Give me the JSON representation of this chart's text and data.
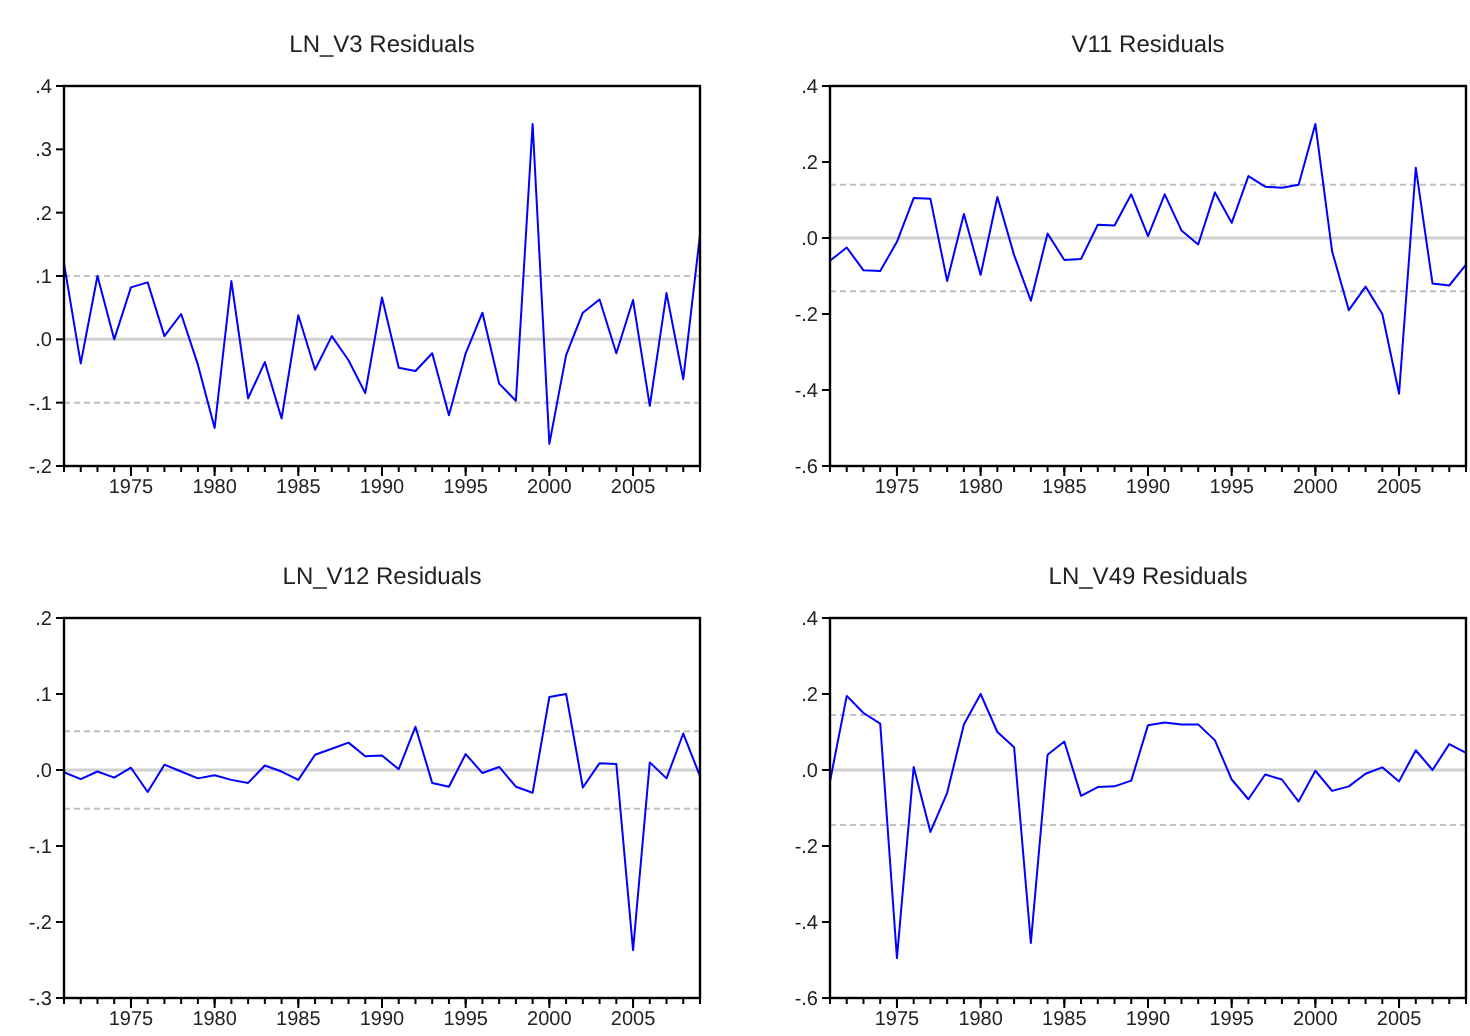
{
  "chart_data": [
    {
      "type": "line",
      "title": "LN_V3 Residuals",
      "x": [
        1971,
        1972,
        1973,
        1974,
        1975,
        1976,
        1977,
        1978,
        1979,
        1980,
        1981,
        1982,
        1983,
        1984,
        1985,
        1986,
        1987,
        1988,
        1989,
        1990,
        1991,
        1992,
        1993,
        1994,
        1995,
        1996,
        1997,
        1998,
        1999,
        2000,
        2001,
        2002,
        2003,
        2004,
        2005,
        2006,
        2007,
        2008,
        2009
      ],
      "series": [
        {
          "color": "#0000ff",
          "values": [
            0.12,
            -0.038,
            0.1,
            0.0,
            0.082,
            0.09,
            0.005,
            0.04,
            -0.04,
            -0.14,
            0.092,
            -0.093,
            -0.036,
            -0.125,
            0.038,
            -0.048,
            0.005,
            -0.033,
            -0.085,
            0.066,
            -0.045,
            -0.05,
            -0.022,
            -0.12,
            -0.022,
            0.042,
            -0.07,
            -0.097,
            0.34,
            -0.165,
            -0.025,
            0.042,
            0.063,
            -0.022,
            0.062,
            -0.105,
            0.073,
            -0.063,
            0.165
          ]
        }
      ],
      "xlim": [
        1971,
        2009
      ],
      "xticks": [
        1975,
        1980,
        1985,
        1990,
        1995,
        2000,
        2005
      ],
      "ylim": [
        -0.2,
        0.4
      ],
      "yticks": [
        {
          "value": -0.2,
          "label": "-.2"
        },
        {
          "value": -0.1,
          "label": "-.1"
        },
        {
          "value": 0,
          "label": ".0"
        },
        {
          "value": 0.1,
          "label": ".1"
        },
        {
          "value": 0.2,
          "label": ".2"
        },
        {
          "value": 0.3,
          "label": ".3"
        },
        {
          "value": 0.4,
          "label": ".4"
        }
      ],
      "ref_lines": [
        {
          "axis": "y",
          "value": 0,
          "color": "#d0d0d0",
          "line_style": "solid"
        },
        {
          "axis": "y",
          "value": 0.1,
          "color": "#c0c0c0",
          "line_style": "dashed"
        },
        {
          "axis": "y",
          "value": -0.1,
          "color": "#c0c0c0",
          "line_style": "dashed"
        }
      ],
      "grid": false,
      "marker": "none",
      "line_style": "solid"
    },
    {
      "type": "line",
      "title": "V11 Residuals",
      "x": [
        1971,
        1972,
        1973,
        1974,
        1975,
        1976,
        1977,
        1978,
        1979,
        1980,
        1981,
        1982,
        1983,
        1984,
        1985,
        1986,
        1987,
        1988,
        1989,
        1990,
        1991,
        1992,
        1993,
        1994,
        1995,
        1996,
        1997,
        1998,
        1999,
        2000,
        2001,
        2002,
        2003,
        2004,
        2005,
        2006,
        2007,
        2008,
        2009
      ],
      "series": [
        {
          "color": "#0000ff",
          "values": [
            -0.06,
            -0.025,
            -0.085,
            -0.087,
            -0.01,
            0.105,
            0.103,
            -0.113,
            0.063,
            -0.097,
            0.108,
            -0.045,
            -0.165,
            0.012,
            -0.058,
            -0.055,
            0.035,
            0.033,
            0.115,
            0.005,
            0.115,
            0.02,
            -0.017,
            0.12,
            0.04,
            0.163,
            0.135,
            0.132,
            0.14,
            0.3,
            -0.035,
            -0.19,
            -0.128,
            -0.2,
            -0.41,
            0.185,
            -0.12,
            -0.125,
            -0.07
          ]
        }
      ],
      "xlim": [
        1971,
        2009
      ],
      "xticks": [
        1975,
        1980,
        1985,
        1990,
        1995,
        2000,
        2005
      ],
      "ylim": [
        -0.6,
        0.4
      ],
      "yticks": [
        {
          "value": -0.6,
          "label": "-.6"
        },
        {
          "value": -0.4,
          "label": "-.4"
        },
        {
          "value": -0.2,
          "label": "-.2"
        },
        {
          "value": 0,
          "label": ".0"
        },
        {
          "value": 0.2,
          "label": ".2"
        },
        {
          "value": 0.4,
          "label": ".4"
        }
      ],
      "ref_lines": [
        {
          "axis": "y",
          "value": 0,
          "color": "#d0d0d0",
          "line_style": "solid"
        },
        {
          "axis": "y",
          "value": 0.14,
          "color": "#c0c0c0",
          "line_style": "dashed"
        },
        {
          "axis": "y",
          "value": -0.14,
          "color": "#c0c0c0",
          "line_style": "dashed"
        }
      ],
      "grid": false,
      "marker": "none",
      "line_style": "solid"
    },
    {
      "type": "line",
      "title": "LN_V12 Residuals",
      "x": [
        1971,
        1972,
        1973,
        1974,
        1975,
        1976,
        1977,
        1978,
        1979,
        1980,
        1981,
        1982,
        1983,
        1984,
        1985,
        1986,
        1987,
        1988,
        1989,
        1990,
        1991,
        1992,
        1993,
        1994,
        1995,
        1996,
        1997,
        1998,
        1999,
        2000,
        2001,
        2002,
        2003,
        2004,
        2005,
        2006,
        2007,
        2008,
        2009
      ],
      "series": [
        {
          "color": "#0000ff",
          "values": [
            -0.003,
            -0.012,
            -0.002,
            -0.01,
            0.003,
            -0.029,
            0.007,
            -0.002,
            -0.011,
            -0.007,
            -0.013,
            -0.017,
            0.006,
            -0.002,
            -0.013,
            0.02,
            0.028,
            0.036,
            0.018,
            0.019,
            0.001,
            0.057,
            -0.017,
            -0.022,
            0.021,
            -0.004,
            0.004,
            -0.022,
            -0.03,
            0.096,
            0.1,
            -0.023,
            0.009,
            0.008,
            -0.237,
            0.01,
            -0.011,
            0.048,
            -0.008
          ]
        }
      ],
      "xlim": [
        1971,
        2009
      ],
      "xticks": [
        1975,
        1980,
        1985,
        1990,
        1995,
        2000,
        2005
      ],
      "ylim": [
        -0.3,
        0.2
      ],
      "yticks": [
        {
          "value": -0.3,
          "label": "-.3"
        },
        {
          "value": -0.2,
          "label": "-.2"
        },
        {
          "value": -0.1,
          "label": "-.1"
        },
        {
          "value": 0,
          "label": ".0"
        },
        {
          "value": 0.1,
          "label": ".1"
        },
        {
          "value": 0.2,
          "label": ".2"
        }
      ],
      "ref_lines": [
        {
          "axis": "y",
          "value": 0,
          "color": "#d0d0d0",
          "line_style": "solid"
        },
        {
          "axis": "y",
          "value": 0.051,
          "color": "#c0c0c0",
          "line_style": "dashed"
        },
        {
          "axis": "y",
          "value": -0.051,
          "color": "#c0c0c0",
          "line_style": "dashed"
        }
      ],
      "grid": false,
      "marker": "none",
      "line_style": "solid"
    },
    {
      "type": "line",
      "title": "LN_V49 Residuals",
      "x": [
        1971,
        1972,
        1973,
        1974,
        1975,
        1976,
        1977,
        1978,
        1979,
        1980,
        1981,
        1982,
        1983,
        1984,
        1985,
        1986,
        1987,
        1988,
        1989,
        1990,
        1991,
        1992,
        1993,
        1994,
        1995,
        1996,
        1997,
        1998,
        1999,
        2000,
        2001,
        2002,
        2003,
        2004,
        2005,
        2006,
        2007,
        2008,
        2009
      ],
      "series": [
        {
          "color": "#0000ff",
          "values": [
            -0.03,
            0.195,
            0.15,
            0.122,
            -0.495,
            0.008,
            -0.163,
            -0.06,
            0.12,
            0.2,
            0.1,
            0.06,
            -0.455,
            0.04,
            0.075,
            -0.068,
            -0.045,
            -0.043,
            -0.028,
            0.118,
            0.125,
            0.12,
            0.12,
            0.078,
            -0.025,
            -0.077,
            -0.012,
            -0.025,
            -0.083,
            -0.002,
            -0.055,
            -0.043,
            -0.01,
            0.007,
            -0.03,
            0.052,
            0.0,
            0.068,
            0.045
          ]
        }
      ],
      "xlim": [
        1971,
        2009
      ],
      "xticks": [
        1975,
        1980,
        1985,
        1990,
        1995,
        2000,
        2005
      ],
      "ylim": [
        -0.6,
        0.4
      ],
      "yticks": [
        {
          "value": -0.6,
          "label": "-.6"
        },
        {
          "value": -0.4,
          "label": "-.4"
        },
        {
          "value": -0.2,
          "label": "-.2"
        },
        {
          "value": 0,
          "label": ".0"
        },
        {
          "value": 0.2,
          "label": ".2"
        },
        {
          "value": 0.4,
          "label": ".4"
        }
      ],
      "ref_lines": [
        {
          "axis": "y",
          "value": 0,
          "color": "#d0d0d0",
          "line_style": "solid"
        },
        {
          "axis": "y",
          "value": 0.145,
          "color": "#c0c0c0",
          "line_style": "dashed"
        },
        {
          "axis": "y",
          "value": -0.145,
          "color": "#c0c0c0",
          "line_style": "dashed"
        }
      ],
      "grid": false,
      "marker": "none",
      "line_style": "solid"
    }
  ]
}
